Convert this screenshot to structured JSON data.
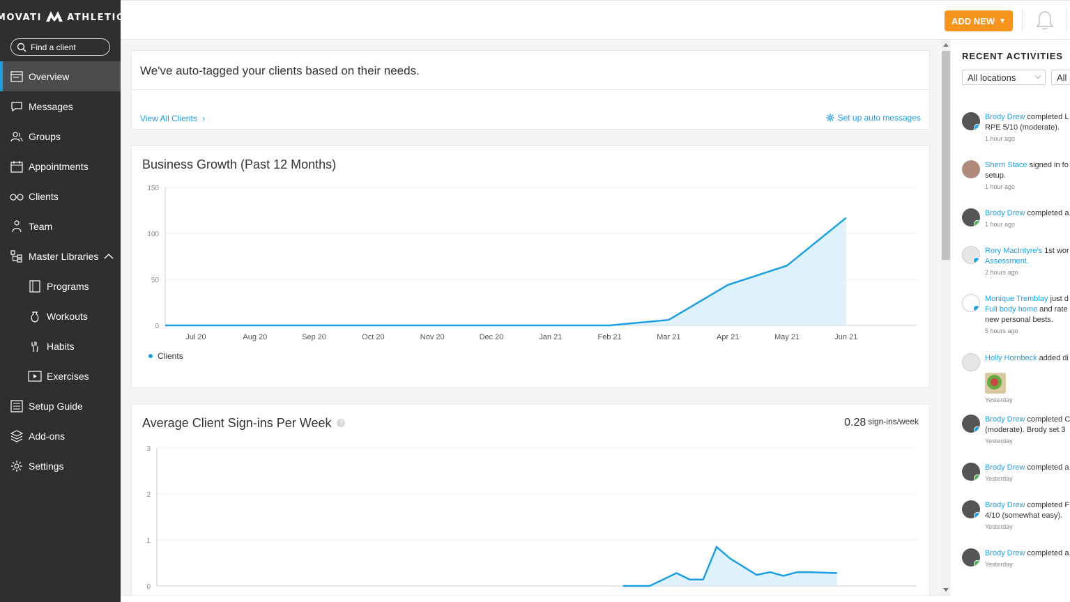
{
  "brand": {
    "left": "MOVATI",
    "right": "ATHLETIC"
  },
  "search": {
    "placeholder": "Find a client"
  },
  "nav": {
    "items": [
      {
        "label": "Overview",
        "icon": "overview-icon"
      },
      {
        "label": "Messages",
        "icon": "messages-icon"
      },
      {
        "label": "Groups",
        "icon": "groups-icon"
      },
      {
        "label": "Appointments",
        "icon": "calendar-icon"
      },
      {
        "label": "Clients",
        "icon": "clients-icon"
      },
      {
        "label": "Team",
        "icon": "team-icon"
      },
      {
        "label": "Master Libraries",
        "icon": "libraries-icon"
      },
      {
        "label": "Programs",
        "icon": "programs-icon"
      },
      {
        "label": "Workouts",
        "icon": "workouts-icon"
      },
      {
        "label": "Habits",
        "icon": "habits-icon"
      },
      {
        "label": "Exercises",
        "icon": "exercises-icon"
      },
      {
        "label": "Setup Guide",
        "icon": "setup-guide-icon"
      },
      {
        "label": "Add-ons",
        "icon": "addons-icon"
      },
      {
        "label": "Settings",
        "icon": "settings-icon"
      }
    ]
  },
  "topbar": {
    "add_new": "ADD NEW"
  },
  "auto_tag": {
    "headline": "We've auto-tagged your clients based on their needs.",
    "view_all": "View All Clients",
    "setup_auto": "Set up auto messages"
  },
  "growth": {
    "title": "Business Growth (Past 12 Months)",
    "legend": "Clients"
  },
  "signins": {
    "title": "Average Client Sign-ins Per Week",
    "help": "?",
    "metric_value": "0.28",
    "metric_unit": "sign-ins/week"
  },
  "chart_data": [
    {
      "type": "area",
      "title": "Business Growth (Past 12 Months)",
      "categories": [
        "Jul 20",
        "Aug 20",
        "Sep 20",
        "Oct 20",
        "Nov 20",
        "Dec 20",
        "Jan 21",
        "Feb 21",
        "Mar 21",
        "Apr 21",
        "May 21",
        "Jun 21"
      ],
      "series": [
        {
          "name": "Clients",
          "values": [
            0,
            0,
            0,
            0,
            0,
            0,
            0,
            0,
            6,
            44,
            65,
            117
          ]
        }
      ],
      "yticks": [
        "0",
        "50",
        "100",
        "150"
      ],
      "ylim": [
        0,
        150
      ],
      "grid": true,
      "legend": "bottom-left",
      "color": "#1b9fe0"
    },
    {
      "type": "area",
      "title": "Average Client Sign-ins Per Week",
      "x": [
        0,
        1,
        2,
        3,
        4,
        5,
        6,
        7,
        8,
        9,
        10,
        11,
        12,
        13,
        14,
        15,
        16,
        17,
        18,
        19,
        20,
        21,
        22,
        23,
        24,
        25,
        26,
        27,
        28,
        29,
        30,
        31,
        32,
        33,
        34,
        35,
        36,
        37,
        38,
        39,
        40,
        41,
        42,
        43,
        44,
        45,
        46,
        47,
        48,
        49,
        50,
        51,
        52
      ],
      "series": [
        {
          "name": "",
          "values": [
            null,
            null,
            null,
            null,
            null,
            null,
            null,
            null,
            null,
            null,
            null,
            null,
            null,
            null,
            null,
            null,
            null,
            null,
            null,
            null,
            null,
            null,
            null,
            null,
            null,
            null,
            null,
            null,
            null,
            null,
            null,
            null,
            null,
            0,
            0,
            0,
            0.14,
            0.28,
            0.14,
            0.14,
            0.85,
            0.6,
            0.42,
            0.24,
            0.3,
            0.22,
            0.3,
            0.3,
            0.29,
            0.28,
            null,
            null,
            null
          ]
        }
      ],
      "yticks": [
        "0",
        "1",
        "2",
        "3"
      ],
      "ylim": [
        0,
        3
      ],
      "grid": true,
      "color": "#1b9fe0"
    }
  ],
  "activities": {
    "title": "RECENT ACTIVITIES",
    "filter_location": "All locations",
    "filter_type": "All",
    "items": [
      {
        "name": "Brody Drew",
        "line1": " completed L",
        "line2": "RPE 5/10 (moderate).",
        "time": "1 hour ago",
        "badge": "#1b9fe0"
      },
      {
        "name": "Sherri Stace",
        "line1": " signed in fo",
        "line2": "setup.",
        "time": "1 hour ago",
        "badge": ""
      },
      {
        "name": "Brody Drew",
        "line1": " completed a",
        "line2": "",
        "time": "1 hour ago",
        "badge": "#4caf50"
      },
      {
        "name": "Rory MacIntyre's",
        "line1": " 1st wor",
        "line2": "Assessment.",
        "time": "2 hours ago",
        "badge": "#1b9fe0"
      },
      {
        "name": "Monique Tremblay",
        "line1": " just d",
        "line2": "Full body home",
        "line2b": " and rate",
        "line3": "new personal bests.",
        "time": "5 hours ago",
        "badge": "#1b9fe0"
      },
      {
        "name": "Holly Hornbeck",
        "line1": " added di",
        "line2": "",
        "time": "Yesterday",
        "badge": ""
      },
      {
        "name": "Brody Drew",
        "line1": " completed C",
        "line2": "(moderate). Brody set 3",
        "time": "Yesterday",
        "badge": "#1b9fe0"
      },
      {
        "name": "Brody Drew",
        "line1": " completed a",
        "line2": "",
        "time": "Yesterday",
        "badge": "#4caf50"
      },
      {
        "name": "Brody Drew",
        "line1": " completed F",
        "line2": "4/10 (somewhat easy).",
        "time": "Yesterday",
        "badge": "#1b9fe0"
      },
      {
        "name": "Brody Drew",
        "line1": " completed a",
        "line2": "",
        "time": "Yesterday",
        "badge": "#4caf50"
      }
    ]
  }
}
